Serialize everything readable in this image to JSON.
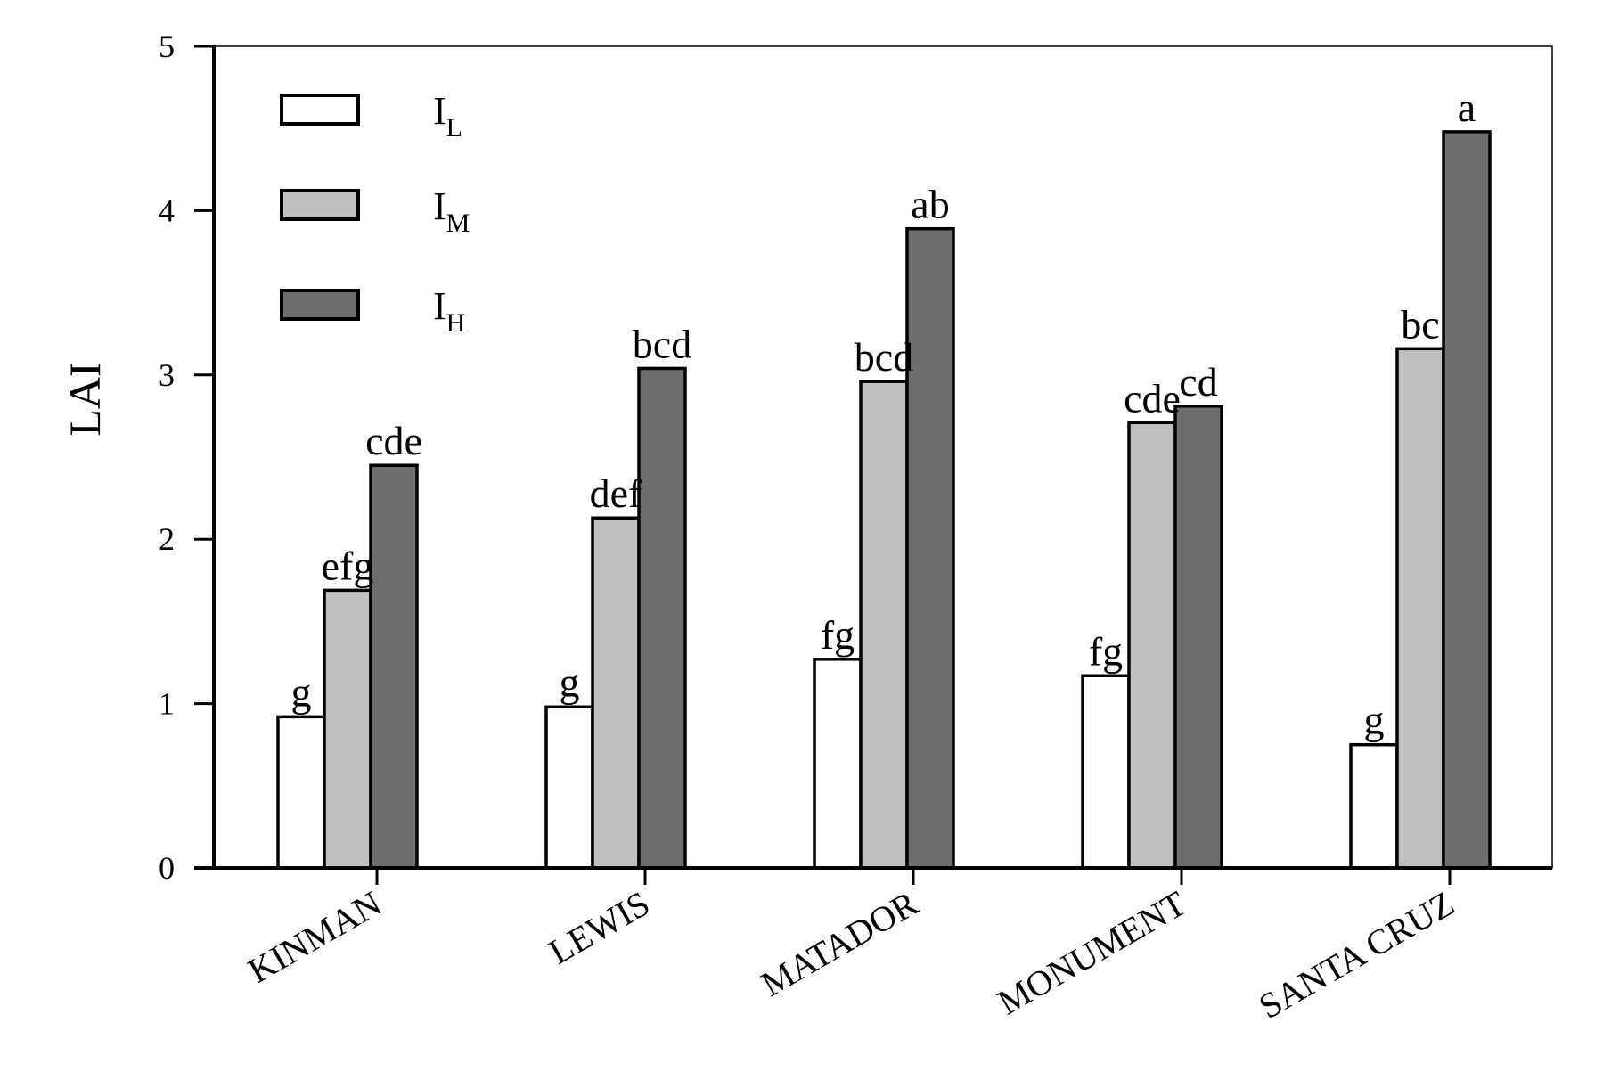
{
  "chart_data": {
    "type": "bar",
    "title": "",
    "xlabel": "",
    "ylabel": "LAI",
    "ylim": [
      0,
      5
    ],
    "yticks": [
      0,
      1,
      2,
      3,
      4,
      5
    ],
    "grid": false,
    "legend_position": "top-left",
    "categories": [
      "KINMAN",
      "LEWIS",
      "MATADOR",
      "MONUMENT",
      "SANTA CRUZ"
    ],
    "series": [
      {
        "name": "I_L",
        "legend_main": "I",
        "legend_sub": "L",
        "color": "#ffffff",
        "values": [
          0.92,
          0.98,
          1.27,
          1.17,
          0.75
        ],
        "labels": [
          "g",
          "g",
          "fg",
          "fg",
          "g"
        ]
      },
      {
        "name": "I_M",
        "legend_main": "I",
        "legend_sub": "M",
        "color": "#c0c0c0",
        "values": [
          1.69,
          2.13,
          2.96,
          2.71,
          3.16
        ],
        "labels": [
          "efg",
          "def",
          "bcd",
          "cde",
          "bc"
        ]
      },
      {
        "name": "I_H",
        "legend_main": "I",
        "legend_sub": "H",
        "color": "#6e6e6e",
        "values": [
          2.45,
          3.04,
          3.89,
          2.81,
          4.48
        ],
        "labels": [
          "cde",
          "bcd",
          "ab",
          "cd",
          "a"
        ]
      }
    ]
  }
}
